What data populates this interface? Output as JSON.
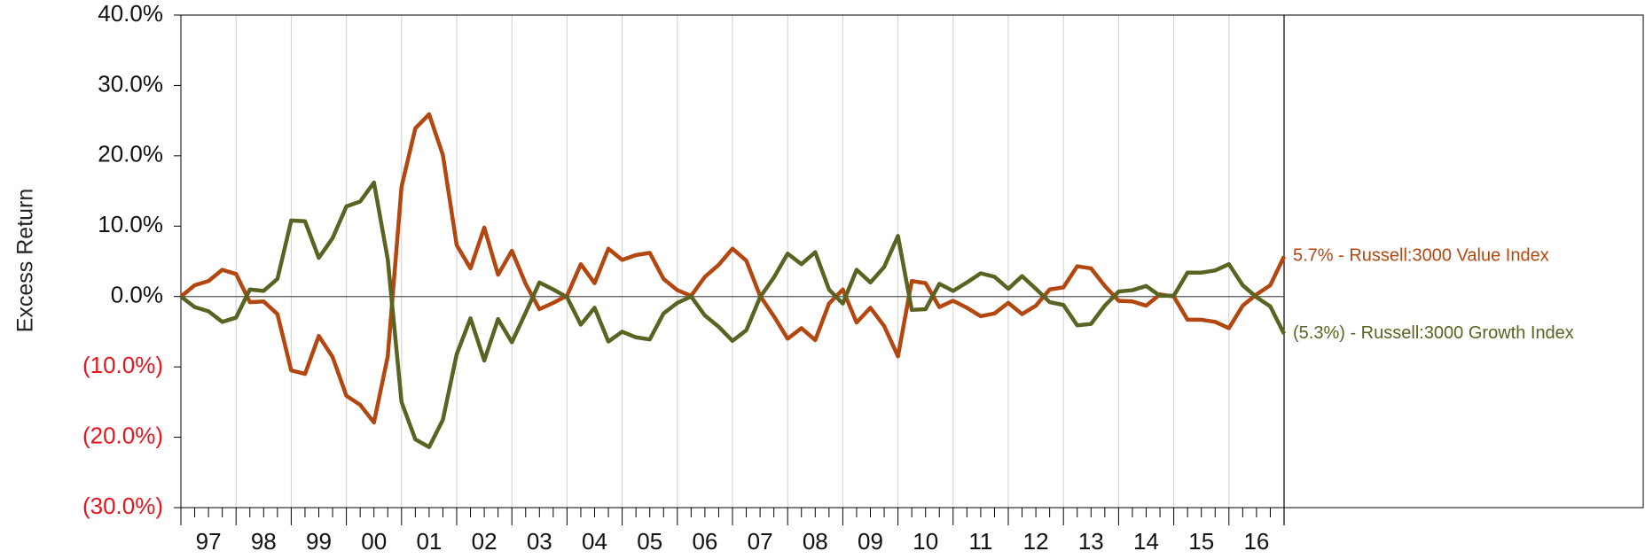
{
  "chart_data": {
    "type": "line",
    "y_axis_label": "Excess Return",
    "x": [
      0,
      0.25,
      0.5,
      0.75,
      1,
      1.25,
      1.5,
      1.75,
      2,
      2.25,
      2.5,
      2.75,
      3,
      3.25,
      3.5,
      3.75,
      4,
      4.25,
      4.5,
      4.75,
      5,
      5.25,
      5.5,
      5.75,
      6,
      6.25,
      6.5,
      6.75,
      7,
      7.25,
      7.5,
      7.75,
      8,
      8.25,
      8.5,
      8.75,
      9,
      9.25,
      9.5,
      9.75,
      10,
      10.25,
      10.5,
      10.75,
      11,
      11.25,
      11.5,
      11.75,
      12,
      12.25,
      12.5,
      12.75,
      13,
      13.25,
      13.5,
      13.75,
      14,
      14.25,
      14.5,
      14.75,
      15,
      15.25,
      15.5,
      15.75,
      16,
      16.25,
      16.5,
      16.75,
      17,
      17.25,
      17.5,
      17.75,
      18,
      18.25,
      18.5,
      18.75,
      19,
      19.25,
      19.5,
      19.75,
      20
    ],
    "xlim": [
      0,
      20
    ],
    "xticks": [
      {
        "value": 0.5,
        "label": "97"
      },
      {
        "value": 1.5,
        "label": "98"
      },
      {
        "value": 2.5,
        "label": "99"
      },
      {
        "value": 3.5,
        "label": "00"
      },
      {
        "value": 4.5,
        "label": "01"
      },
      {
        "value": 5.5,
        "label": "02"
      },
      {
        "value": 6.5,
        "label": "03"
      },
      {
        "value": 7.5,
        "label": "04"
      },
      {
        "value": 8.5,
        "label": "05"
      },
      {
        "value": 9.5,
        "label": "06"
      },
      {
        "value": 10.5,
        "label": "07"
      },
      {
        "value": 11.5,
        "label": "08"
      },
      {
        "value": 12.5,
        "label": "09"
      },
      {
        "value": 13.5,
        "label": "10"
      },
      {
        "value": 14.5,
        "label": "11"
      },
      {
        "value": 15.5,
        "label": "12"
      },
      {
        "value": 16.5,
        "label": "13"
      },
      {
        "value": 17.5,
        "label": "14"
      },
      {
        "value": 18.5,
        "label": "15"
      },
      {
        "value": 19.5,
        "label": "16"
      }
    ],
    "ylim": [
      -30,
      40
    ],
    "yticks": [
      {
        "value": 40,
        "label": "40.0%"
      },
      {
        "value": 30,
        "label": "30.0%"
      },
      {
        "value": 20,
        "label": "20.0%"
      },
      {
        "value": 10,
        "label": "10.0%"
      },
      {
        "value": 0,
        "label": "0.0%"
      },
      {
        "value": -10,
        "label": "(10.0%)"
      },
      {
        "value": -20,
        "label": "(20.0%)"
      },
      {
        "value": -30,
        "label": "(30.0%)"
      }
    ],
    "negative_label_color": "#e8141b",
    "grid": true,
    "series": [
      {
        "name": "5.7% - Russell:3000 Value Index",
        "color": "#b4470f",
        "values": [
          0,
          1.6,
          2.2,
          3.8,
          3.2,
          -0.8,
          -0.7,
          -2.5,
          -10.5,
          -11.0,
          -5.6,
          -8.6,
          -14.1,
          -15.4,
          -17.9,
          -8.5,
          15.6,
          23.9,
          25.9,
          20.1,
          7.3,
          4.0,
          9.8,
          3.1,
          6.5,
          1.8,
          -1.8,
          -0.9,
          0.1,
          4.6,
          1.9,
          6.8,
          5.2,
          5.9,
          6.2,
          2.5,
          0.9,
          0.1,
          2.8,
          4.5,
          6.8,
          5.1,
          0.1,
          -2.8,
          -6.0,
          -4.5,
          -6.2,
          -1.0,
          1.0,
          -3.7,
          -1.6,
          -4.2,
          -8.5,
          2.2,
          1.9,
          -1.5,
          -0.6,
          -1.6,
          -2.8,
          -2.4,
          -0.9,
          -2.5,
          -1.3,
          1.0,
          1.3,
          4.3,
          4.0,
          1.5,
          -0.6,
          -0.7,
          -1.3,
          0.3,
          0.0,
          -3.3,
          -3.3,
          -3.6,
          -4.5,
          -1.3,
          0.3,
          1.6,
          5.7
        ]
      },
      {
        "name": "(5.3%) - Russell:3000 Growth Index",
        "color": "#5a6321",
        "values": [
          0,
          -1.5,
          -2.1,
          -3.6,
          -3.0,
          1.0,
          0.8,
          2.5,
          10.8,
          10.7,
          5.5,
          8.3,
          12.8,
          13.5,
          16.2,
          5.3,
          -15.0,
          -20.3,
          -21.4,
          -17.5,
          -8.2,
          -3.1,
          -9.1,
          -3.2,
          -6.5,
          -2.3,
          2.0,
          1.0,
          -0.1,
          -4.0,
          -1.6,
          -6.4,
          -5.0,
          -5.8,
          -6.1,
          -2.4,
          -0.9,
          0.0,
          -2.7,
          -4.3,
          -6.3,
          -4.8,
          -0.1,
          2.7,
          6.1,
          4.6,
          6.3,
          1.0,
          -1.0,
          3.8,
          2.0,
          4.2,
          8.6,
          -1.9,
          -1.8,
          1.8,
          0.8,
          2.0,
          3.3,
          2.8,
          1.1,
          2.9,
          1.1,
          -0.8,
          -1.2,
          -4.1,
          -3.9,
          -1.3,
          0.7,
          0.9,
          1.5,
          0.1,
          0.1,
          3.4,
          3.4,
          3.7,
          4.6,
          1.6,
          -0.1,
          -1.4,
          -5.3
        ]
      }
    ]
  }
}
